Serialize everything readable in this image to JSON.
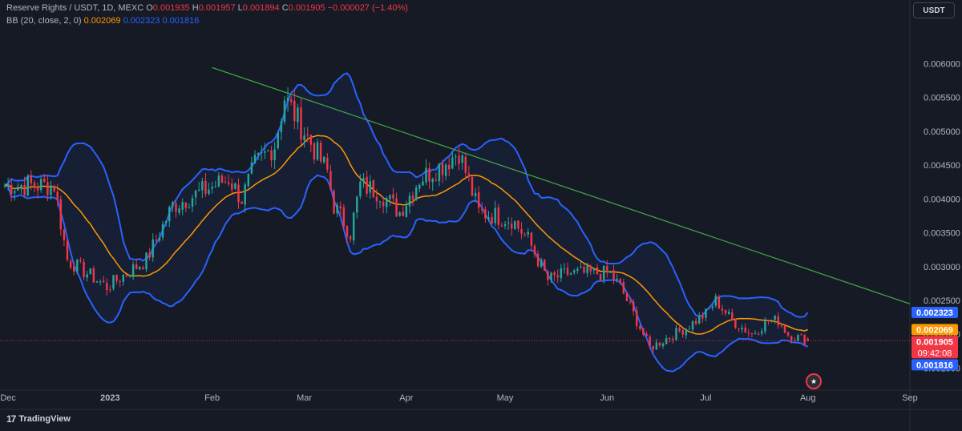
{
  "legend": {
    "symbol": "Reserve Rights / USDT, 1D, MEXC",
    "o_label": "O",
    "o_val": "0.001935",
    "h_label": "H",
    "h_val": "0.001957",
    "l_label": "L",
    "l_val": "0.001894",
    "c_label": "C",
    "c_val": "0.001905",
    "change": "−0.000027 (−1.40%)",
    "bb_label": "BB (20, close, 2, 0)",
    "bb_basis": "0.002069",
    "bb_upper": "0.002323",
    "bb_lower": "0.001816"
  },
  "currency_button": "USDT",
  "brand": {
    "logo": "17",
    "name": "TradingView"
  },
  "flag_icon": "us-flag-icon",
  "colors": {
    "background": "#161a25",
    "up": "#26a69a",
    "down": "#f23645",
    "basis": "#ff9800",
    "bands": "#2962ff",
    "trendline": "#43a047",
    "text": "#b2b5be"
  },
  "chart_data": {
    "type": "candlestick",
    "title": "Reserve Rights / USDT, 1D, MEXC",
    "y_ticks": [
      0.0015,
      0.002,
      0.0025,
      0.003,
      0.0035,
      0.004,
      0.0045,
      0.005,
      0.0055,
      0.006
    ],
    "y_tick_labels": [
      "0.001500",
      "0.002000",
      "0.002500",
      "0.003000",
      "0.003500",
      "0.004000",
      "0.004500",
      "0.005000",
      "0.005500",
      "0.006000"
    ],
    "ylim": [
      0.00121,
      0.00637
    ],
    "x_ticks": [
      "Dec",
      "2023",
      "Feb",
      "Mar",
      "Apr",
      "May",
      "Jun",
      "Jul",
      "Aug",
      "Sep"
    ],
    "x_tick_dates": [
      "2022-12-01",
      "2023-01-01",
      "2023-02-01",
      "2023-03-01",
      "2023-04-01",
      "2023-05-01",
      "2023-06-01",
      "2023-07-01",
      "2023-08-01",
      "2023-09-01"
    ],
    "xlim": [
      "2022-11-30",
      "2023-09-01"
    ],
    "close_key_dates": [
      "2022-11-30",
      "2022-12-15",
      "2022-12-19",
      "2022-12-31",
      "2023-01-12",
      "2023-01-20",
      "2023-02-06",
      "2023-02-10",
      "2023-02-14",
      "2023-02-20",
      "2023-02-23",
      "2023-03-08",
      "2023-03-10",
      "2023-03-15",
      "2023-03-18",
      "2023-03-24",
      "2023-03-30",
      "2023-04-05",
      "2023-04-12",
      "2023-04-17",
      "2023-04-23",
      "2023-05-03",
      "2023-05-08",
      "2023-05-14",
      "2023-05-20",
      "2023-05-26",
      "2023-06-02",
      "2023-06-05",
      "2023-06-09",
      "2023-06-14",
      "2023-06-25",
      "2023-07-01",
      "2023-07-04",
      "2023-07-09",
      "2023-07-15",
      "2023-07-20",
      "2023-07-23",
      "2023-07-26",
      "2023-08-01"
    ],
    "close_key_values": [
      0.0042,
      0.0042,
      0.0031,
      0.0027,
      0.0031,
      0.0039,
      0.0043,
      0.004,
      0.0045,
      0.0048,
      0.0055,
      0.0044,
      0.0039,
      0.0035,
      0.0042,
      0.0041,
      0.0038,
      0.0043,
      0.0045,
      0.0047,
      0.0038,
      0.0037,
      0.0034,
      0.0028,
      0.0029,
      0.0029,
      0.0029,
      0.0027,
      0.0023,
      0.0018,
      0.0021,
      0.0023,
      0.0025,
      0.0022,
      0.002,
      0.0022,
      0.0022,
      0.002,
      0.00191
    ],
    "last_bar": {
      "open": 0.001935,
      "high": 0.001957,
      "low": 0.001894,
      "close": 0.001905
    },
    "series": [
      {
        "name": "BB basis",
        "indicator": "BB (20, close, 2, 0)",
        "last": 0.002069,
        "color": "#ff9800"
      },
      {
        "name": "BB upper",
        "last": 0.002323,
        "color": "#2962ff"
      },
      {
        "name": "BB lower",
        "last": 0.001816,
        "color": "#2962ff"
      }
    ],
    "trendline": {
      "from": [
        "2023-02-01",
        0.00594
      ],
      "to": [
        "2023-09-01",
        0.00245
      ],
      "color": "#43a047"
    },
    "price_labels": [
      {
        "text": "0.002323",
        "value": 0.002323,
        "color": "#2962ff"
      },
      {
        "text": "0.002069",
        "value": 0.002069,
        "color": "#ff9800"
      },
      {
        "text": "0.001905",
        "value": 0.001905,
        "color": "#f23645",
        "sub": "09:42:08"
      },
      {
        "text": "0.001816",
        "value": 0.001816,
        "color": "#2962ff"
      }
    ],
    "grid": false,
    "legend_position": "top-left"
  }
}
